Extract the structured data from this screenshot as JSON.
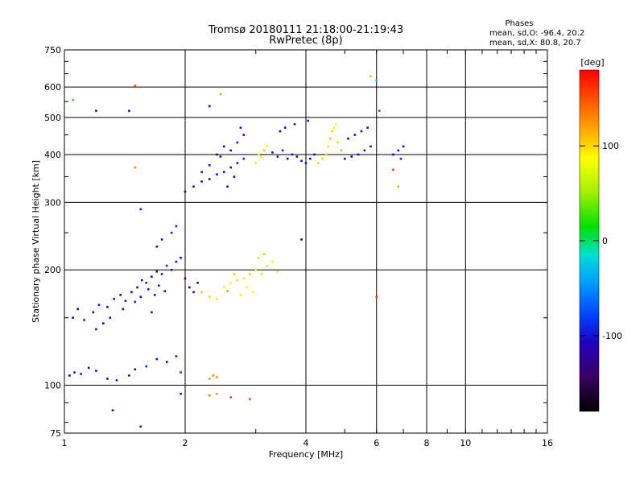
{
  "header": {
    "title_line1": "Tromsø 20180111 21:18:00-21:19:43",
    "title_line2": "RwPretec (8p)"
  },
  "stats": {
    "heading": "Phases",
    "line_o": "mean, sd,O: -96.4, 20.2",
    "line_x": "mean, sd,X:  80.8, 20.7"
  },
  "colorbar": {
    "label": "[deg]",
    "ticks": [
      {
        "value": 100,
        "label": "100"
      },
      {
        "value": 0,
        "label": "0"
      },
      {
        "value": -100,
        "label": "-100"
      }
    ],
    "range": [
      -180,
      180
    ]
  },
  "chart_data": {
    "type": "scatter",
    "title": "Tromsø 20180111 21:18:00-21:19:43",
    "subtitle": "RwPretec (8p)",
    "xlabel": "Frequency [MHz]",
    "ylabel": "Stationary phase Virtual Height [km]",
    "xscale": "log",
    "yscale": "log",
    "xlim": [
      1,
      16
    ],
    "ylim": [
      75,
      750
    ],
    "xticks": [
      {
        "value": 1,
        "label": "1"
      },
      {
        "value": 2,
        "label": "2"
      },
      {
        "value": 4,
        "label": "4"
      },
      {
        "value": 6,
        "label": "6"
      },
      {
        "value": 8,
        "label": "8"
      },
      {
        "value": 10,
        "label": "10"
      },
      {
        "value": 16,
        "label": "16"
      }
    ],
    "yticks": [
      {
        "value": 75,
        "label": "75"
      },
      {
        "value": 100,
        "label": "100"
      },
      {
        "value": 200,
        "label": "200"
      },
      {
        "value": 300,
        "label": "300"
      },
      {
        "value": 400,
        "label": "400"
      },
      {
        "value": 500,
        "label": "500"
      },
      {
        "value": 600,
        "label": "600"
      },
      {
        "value": 750,
        "label": "750"
      }
    ],
    "xgrid": [
      2,
      4,
      6,
      8,
      10
    ],
    "ygrid": [
      100,
      200,
      300,
      400,
      500,
      600
    ],
    "color_by": "phase [deg]",
    "points": [
      [
        1.03,
        106,
        -110
      ],
      [
        1.06,
        108,
        -105
      ],
      [
        1.1,
        107,
        -100
      ],
      [
        1.15,
        111,
        -115
      ],
      [
        1.2,
        109,
        -95
      ],
      [
        1.28,
        104,
        -110
      ],
      [
        1.35,
        103,
        -100
      ],
      [
        1.45,
        106,
        -120
      ],
      [
        1.5,
        110,
        -105
      ],
      [
        1.6,
        112,
        -90
      ],
      [
        1.7,
        117,
        -95
      ],
      [
        1.8,
        115,
        -110
      ],
      [
        1.9,
        119,
        -100
      ],
      [
        1.95,
        108,
        -85
      ],
      [
        1.05,
        150,
        -110
      ],
      [
        1.08,
        158,
        -115
      ],
      [
        1.12,
        148,
        -100
      ],
      [
        1.18,
        155,
        -105
      ],
      [
        1.22,
        162,
        -95
      ],
      [
        1.28,
        160,
        -110
      ],
      [
        1.33,
        168,
        -100
      ],
      [
        1.38,
        172,
        -115
      ],
      [
        1.42,
        166,
        -90
      ],
      [
        1.47,
        175,
        -105
      ],
      [
        1.52,
        180,
        -110
      ],
      [
        1.56,
        188,
        -100
      ],
      [
        1.6,
        185,
        -95
      ],
      [
        1.65,
        192,
        -108
      ],
      [
        1.7,
        198,
        -112
      ],
      [
        1.75,
        195,
        -100
      ],
      [
        1.8,
        205,
        -92
      ],
      [
        1.85,
        200,
        -105
      ],
      [
        1.9,
        210,
        -98
      ],
      [
        1.95,
        215,
        -110
      ],
      [
        2.0,
        190,
        -140
      ],
      [
        2.05,
        180,
        -150
      ],
      [
        2.1,
        175,
        -135
      ],
      [
        2.15,
        185,
        -145
      ],
      [
        1.5,
        165,
        -100
      ],
      [
        1.55,
        170,
        -110
      ],
      [
        1.62,
        178,
        -95
      ],
      [
        1.68,
        172,
        -120
      ],
      [
        1.72,
        182,
        -100
      ],
      [
        1.78,
        176,
        -115
      ],
      [
        1.65,
        155,
        -100
      ],
      [
        1.4,
        158,
        -105
      ],
      [
        1.3,
        150,
        -110
      ],
      [
        1.25,
        145,
        -115
      ],
      [
        1.2,
        140,
        -100
      ],
      [
        1.7,
        230,
        -105
      ],
      [
        1.75,
        240,
        -112
      ],
      [
        1.85,
        250,
        -100
      ],
      [
        1.9,
        260,
        -95
      ],
      [
        1.55,
        288,
        -100
      ],
      [
        2.2,
        175,
        110
      ],
      [
        2.3,
        170,
        100
      ],
      [
        2.4,
        168,
        95
      ],
      [
        2.5,
        180,
        85
      ],
      [
        2.55,
        176,
        120
      ],
      [
        2.6,
        185,
        80
      ],
      [
        2.7,
        188,
        70
      ],
      [
        2.8,
        190,
        75
      ],
      [
        2.9,
        195,
        60
      ],
      [
        3.0,
        200,
        65
      ],
      [
        3.1,
        195,
        70
      ],
      [
        3.2,
        205,
        72
      ],
      [
        3.3,
        210,
        80
      ],
      [
        3.4,
        198,
        68
      ],
      [
        2.85,
        180,
        90
      ],
      [
        2.95,
        175,
        85
      ],
      [
        2.75,
        172,
        95
      ],
      [
        3.05,
        215,
        60
      ],
      [
        3.15,
        220,
        55
      ],
      [
        2.65,
        195,
        50
      ],
      [
        2.3,
        104,
        120
      ],
      [
        2.35,
        106,
        130
      ],
      [
        2.4,
        105,
        125
      ],
      [
        2.3,
        94,
        130
      ],
      [
        2.4,
        95,
        125
      ],
      [
        2.6,
        93,
        160
      ],
      [
        2.9,
        92,
        150
      ],
      [
        1.95,
        95,
        -110
      ],
      [
        1.32,
        86,
        -120
      ],
      [
        1.55,
        78,
        -110
      ],
      [
        2.0,
        320,
        -105
      ],
      [
        2.1,
        330,
        -110
      ],
      [
        2.2,
        340,
        -100
      ],
      [
        2.3,
        345,
        -112
      ],
      [
        2.4,
        355,
        -98
      ],
      [
        2.5,
        360,
        -105
      ],
      [
        2.6,
        370,
        -110
      ],
      [
        2.7,
        380,
        -100
      ],
      [
        2.8,
        390,
        -95
      ],
      [
        2.2,
        360,
        -110
      ],
      [
        2.3,
        375,
        -100
      ],
      [
        2.4,
        400,
        -105
      ],
      [
        2.6,
        410,
        -112
      ],
      [
        2.7,
        430,
        -100
      ],
      [
        2.8,
        450,
        -108
      ],
      [
        2.75,
        470,
        -102
      ],
      [
        2.5,
        420,
        -110
      ],
      [
        2.45,
        395,
        -100
      ],
      [
        2.65,
        350,
        -115
      ],
      [
        2.55,
        330,
        -108
      ],
      [
        3.0,
        380,
        95
      ],
      [
        3.1,
        395,
        100
      ],
      [
        3.15,
        410,
        105
      ],
      [
        3.05,
        400,
        90
      ],
      [
        3.2,
        420,
        80
      ],
      [
        3.3,
        405,
        -100
      ],
      [
        3.4,
        395,
        -105
      ],
      [
        3.5,
        410,
        -95
      ],
      [
        3.6,
        390,
        -110
      ],
      [
        3.7,
        400,
        -100
      ],
      [
        3.8,
        395,
        -110
      ],
      [
        3.9,
        385,
        -105
      ],
      [
        4.0,
        380,
        -100
      ],
      [
        4.1,
        390,
        -108
      ],
      [
        4.2,
        400,
        -112
      ],
      [
        3.55,
        470,
        -105
      ],
      [
        3.75,
        480,
        -95
      ],
      [
        3.45,
        460,
        -110
      ],
      [
        4.05,
        490,
        -100
      ],
      [
        4.3,
        380,
        100
      ],
      [
        4.4,
        390,
        105
      ],
      [
        4.5,
        400,
        100
      ],
      [
        4.55,
        420,
        95
      ],
      [
        4.6,
        440,
        110
      ],
      [
        4.65,
        460,
        105
      ],
      [
        4.7,
        470,
        90
      ],
      [
        4.8,
        430,
        100
      ],
      [
        4.9,
        410,
        110
      ],
      [
        4.75,
        480,
        85
      ],
      [
        5.0,
        390,
        -100
      ],
      [
        5.2,
        395,
        -110
      ],
      [
        5.4,
        400,
        -105
      ],
      [
        5.6,
        410,
        -95
      ],
      [
        5.8,
        420,
        -100
      ],
      [
        5.1,
        440,
        -108
      ],
      [
        5.3,
        450,
        -112
      ],
      [
        5.5,
        460,
        -100
      ],
      [
        5.7,
        470,
        -105
      ],
      [
        6.6,
        400,
        -110
      ],
      [
        6.8,
        410,
        -100
      ],
      [
        7.0,
        420,
        -105
      ],
      [
        6.9,
        390,
        -95
      ],
      [
        1.05,
        555,
        20
      ],
      [
        1.2,
        520,
        -110
      ],
      [
        1.45,
        520,
        -105
      ],
      [
        1.5,
        605,
        150
      ],
      [
        2.3,
        535,
        -120
      ],
      [
        2.45,
        575,
        120
      ],
      [
        5.8,
        640,
        110
      ],
      [
        6.0,
        625,
        -30
      ],
      [
        6.1,
        520,
        -60
      ],
      [
        6.8,
        330,
        120
      ],
      [
        6.6,
        365,
        160
      ],
      [
        6.0,
        170,
        160
      ],
      [
        1.5,
        370,
        130
      ],
      [
        3.9,
        240,
        -110
      ]
    ]
  }
}
